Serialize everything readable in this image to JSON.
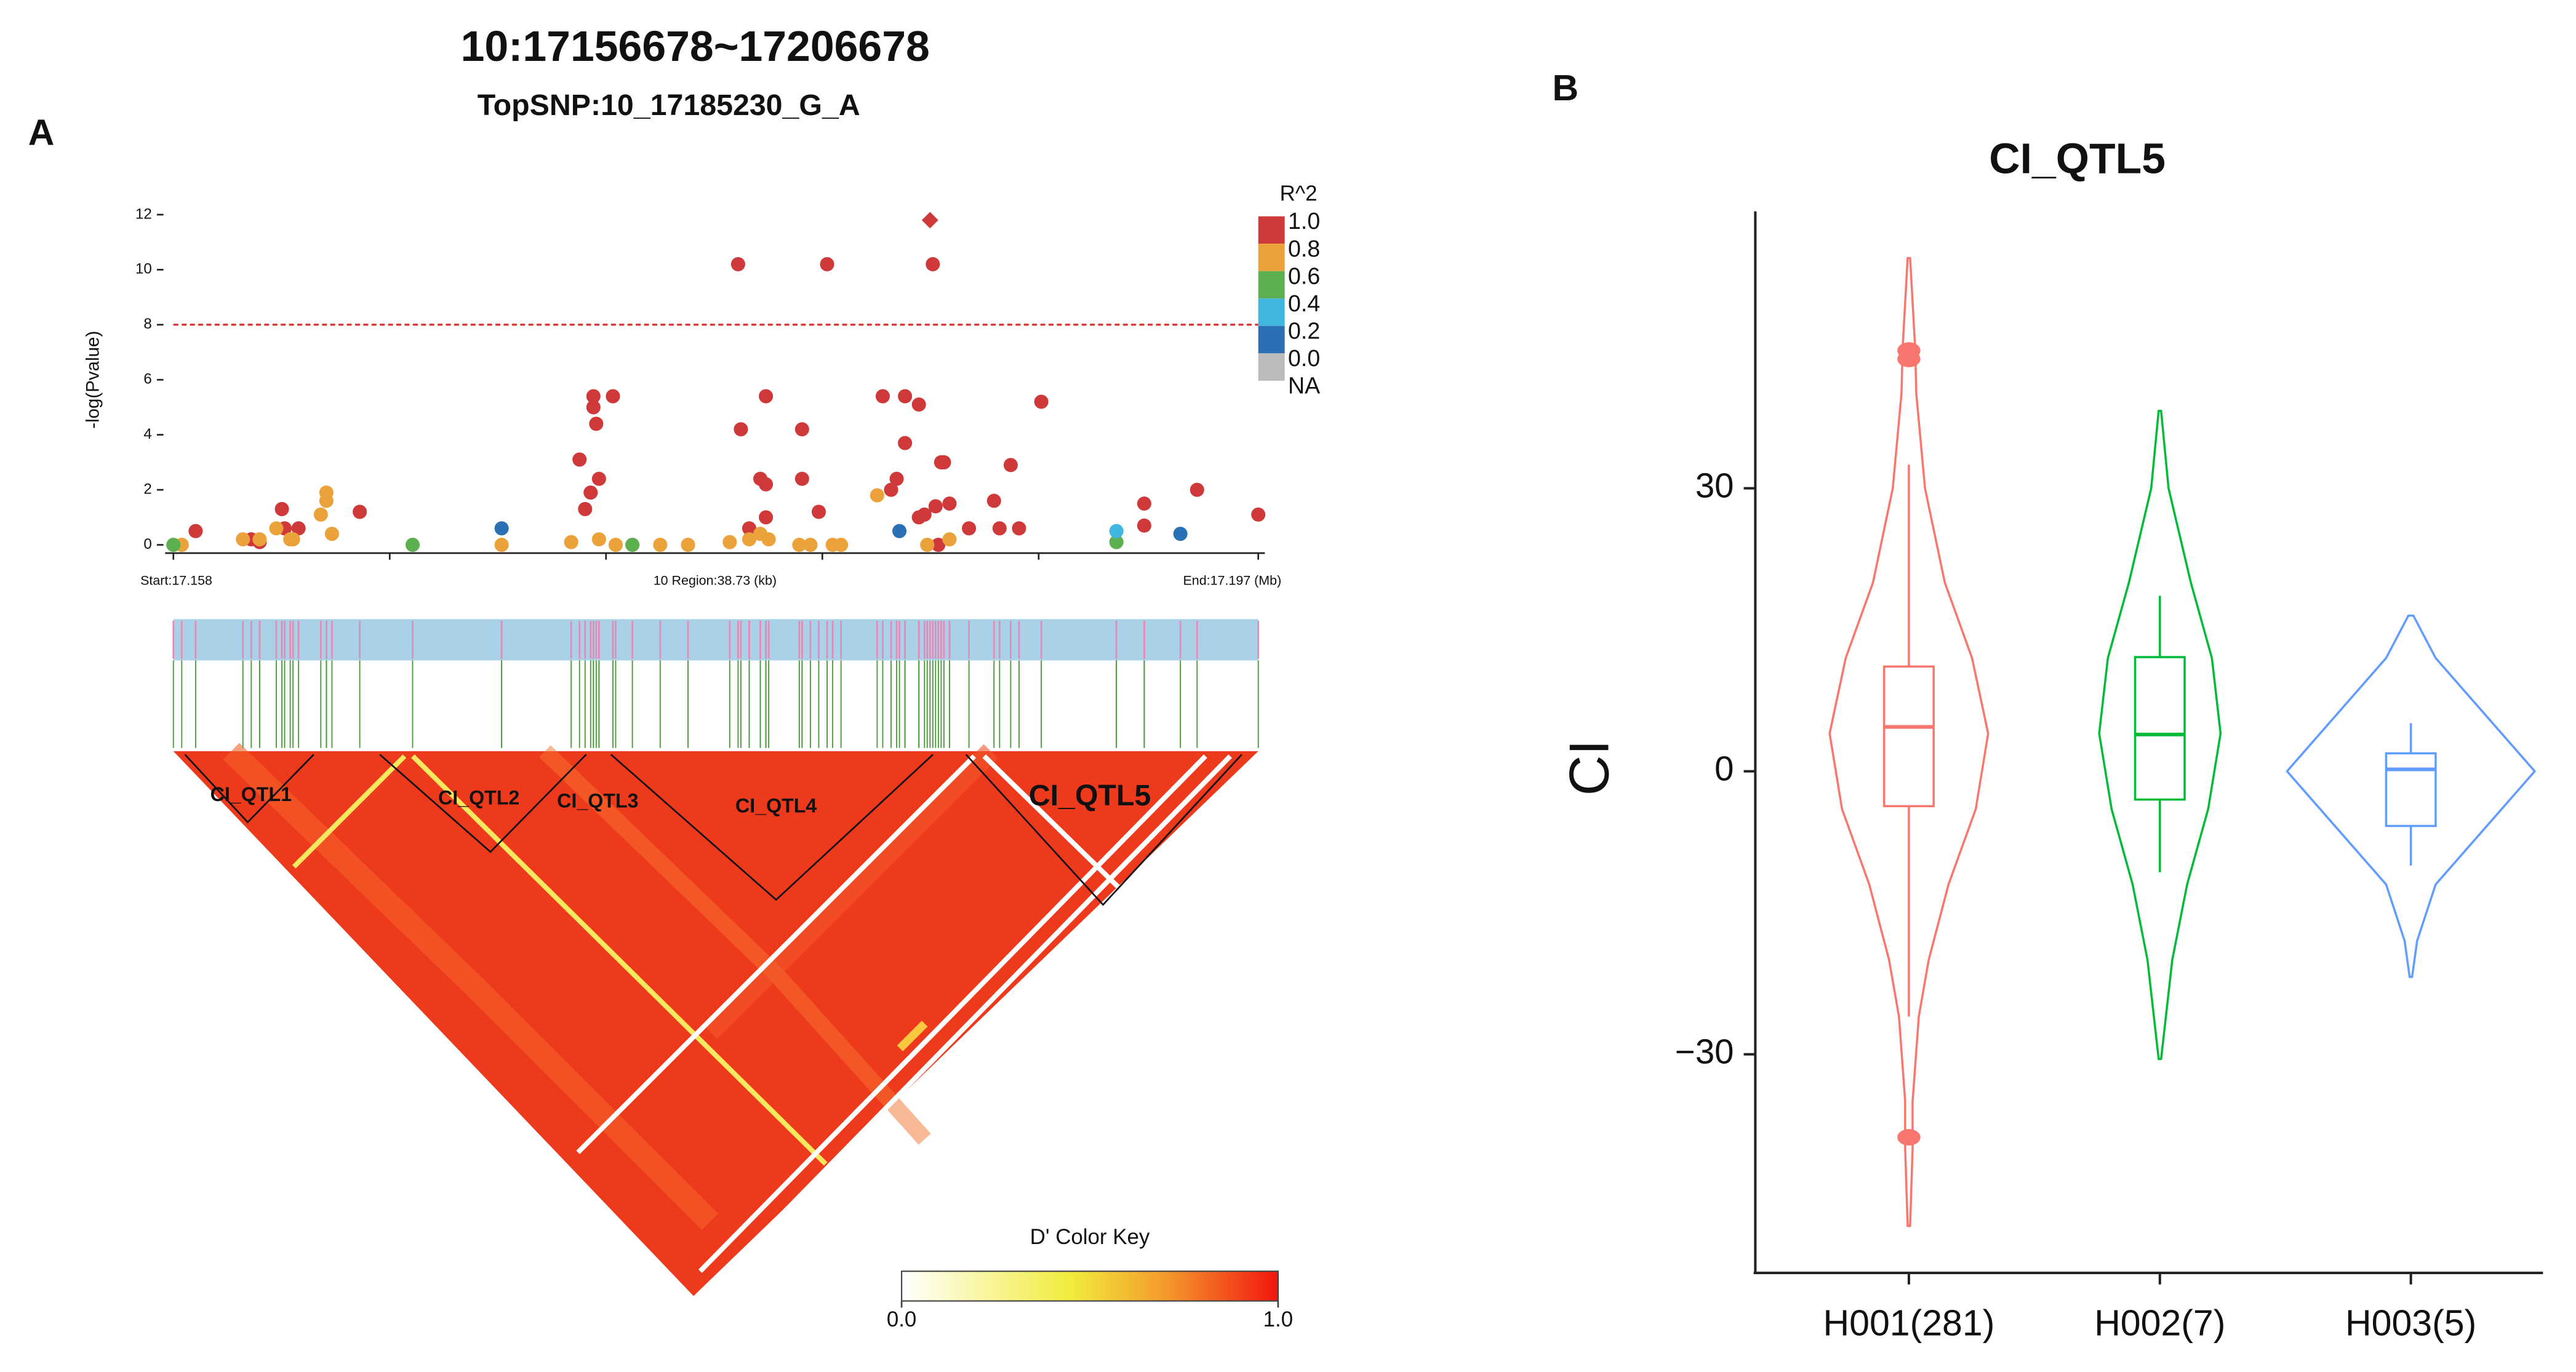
{
  "chart_data": [
    {
      "type": "scatter",
      "panel": "A",
      "title": "10:17156678~17206678",
      "subtitle": "TopSNP:10_17185230_G_A",
      "y_label": "-log(Pvalue)",
      "x_labels": [
        "Start:17.158",
        "10 Region:38.73 (kb)",
        "End:17.197 (Mb)"
      ],
      "xlim": [
        17.158,
        17.197
      ],
      "ylim": [
        0,
        12
      ],
      "yticks": [
        0,
        2,
        4,
        6,
        8,
        10,
        12
      ],
      "threshold": 8,
      "threshold_color": "#e0312f",
      "legend": {
        "title": "R^2",
        "labels": [
          "1.0",
          "0.8",
          "0.6",
          "0.4",
          "0.2",
          "0.0",
          "NA"
        ],
        "colors": [
          "#d0393a",
          "#eca23a",
          "#5cb04f",
          "#41b6e0",
          "#2b70b5",
          "#bbbbbb"
        ]
      },
      "series": [
        {
          "color": "#d0393a",
          "marker": "circle",
          "x": [
            17.1588,
            17.1608,
            17.1611,
            17.1619,
            17.162,
            17.1625,
            17.1647,
            17.1726,
            17.1728,
            17.173,
            17.1731,
            17.1731,
            17.1732,
            17.1733,
            17.1738,
            17.1783,
            17.1815,
            17.1853,
            17.1784,
            17.1793,
            17.1791,
            17.1793,
            17.1806,
            17.1806,
            17.1812,
            17.1787,
            17.1793,
            17.1835,
            17.1843,
            17.1843,
            17.1848,
            17.184,
            17.1838,
            17.1856,
            17.1857,
            17.1848,
            17.185,
            17.1854,
            17.1855,
            17.1859,
            17.1866,
            17.1875,
            17.1877,
            17.1881,
            17.1884,
            17.1892,
            17.1929,
            17.1929,
            17.1948,
            17.197
          ],
          "values": [
            0.5,
            0.2,
            0.1,
            1.3,
            0.6,
            0.6,
            1.2,
            3.1,
            1.3,
            1.9,
            5.4,
            5.0,
            4.4,
            2.4,
            5.4,
            10.2,
            10.2,
            10.2,
            4.2,
            5.4,
            2.4,
            2.2,
            4.2,
            2.4,
            1.2,
            0.6,
            1.0,
            5.4,
            5.4,
            3.7,
            5.1,
            2.4,
            2.0,
            3.0,
            3.0,
            1.0,
            1.1,
            1.4,
            0.0,
            1.5,
            0.6,
            1.6,
            0.6,
            2.9,
            0.6,
            5.2,
            1.5,
            0.7,
            2.0,
            1.1
          ]
        },
        {
          "color": "#d0393a",
          "marker": "diamond",
          "x": [
            17.1852
          ],
          "values": [
            11.8
          ]
        },
        {
          "color": "#eca23a",
          "marker": "circle",
          "x": [
            17.1583,
            17.1605,
            17.1611,
            17.1617,
            17.1622,
            17.1623,
            17.1633,
            17.1635,
            17.1635,
            17.1637,
            17.1698,
            17.1723,
            17.1733,
            17.1739,
            17.1755,
            17.1765,
            17.178,
            17.1787,
            17.1791,
            17.1794,
            17.1805,
            17.1809,
            17.1817,
            17.182,
            17.1833,
            17.1851,
            17.1859
          ],
          "values": [
            0.0,
            0.2,
            0.2,
            0.6,
            0.2,
            0.2,
            1.1,
            1.6,
            1.9,
            0.4,
            0.0,
            0.1,
            0.2,
            0.0,
            0.0,
            0.0,
            0.1,
            0.2,
            0.4,
            0.2,
            0.0,
            0.0,
            0.0,
            0.0,
            1.8,
            0.0,
            0.2
          ]
        },
        {
          "color": "#5cb04f",
          "marker": "circle",
          "x": [
            17.158,
            17.1666,
            17.1745,
            17.1919
          ],
          "values": [
            0.0,
            0.0,
            0.0,
            0.1
          ]
        },
        {
          "color": "#41b6e0",
          "marker": "circle",
          "x": [
            17.1919
          ],
          "values": [
            0.5
          ]
        },
        {
          "color": "#2b70b5",
          "marker": "circle",
          "x": [
            17.1698,
            17.1841,
            17.1942
          ],
          "values": [
            0.6,
            0.5,
            0.4
          ]
        }
      ],
      "ld_blocks": [
        "CI_QTL1",
        "CI_QTL2",
        "CI_QTL3",
        "CI_QTL4",
        "CI_QTL5"
      ],
      "color_key": {
        "title": "D' Color Key",
        "ticks": [
          {
            "value": 0,
            "label": "0.0"
          },
          {
            "value": 1,
            "label": "1.0"
          }
        ]
      }
    },
    {
      "type": "violin",
      "panel": "B",
      "title": "CI_QTL5",
      "y_label": "CI",
      "categories": [
        "H001(281)",
        "H002(7)",
        "H003(5)"
      ],
      "ylim": [
        -53,
        59
      ],
      "yticks": [
        {
          "value": -30,
          "label": "−30"
        },
        0,
        30
      ],
      "series": [
        {
          "color": "#f8766d",
          "median": 4.7,
          "q1": -3.7,
          "q3": 11.1,
          "whisker_low": -26,
          "whisker_high": 32.5,
          "outliers": [
            44.6,
            43.7,
            -38.8
          ],
          "density_y": [
            54.4,
            45,
            40,
            30,
            20,
            12,
            4,
            -4,
            -12,
            -20,
            -26,
            -35,
            -40,
            -48.2
          ],
          "density": [
            0.01,
            0.05,
            0.06,
            0.13,
            0.29,
            0.51,
            0.64,
            0.54,
            0.32,
            0.16,
            0.08,
            0.03,
            0.03,
            0.01
          ]
        },
        {
          "color": "#00ba38",
          "median": 3.9,
          "q1": -3.0,
          "q3": 12.1,
          "whisker_low": -10.7,
          "whisker_high": 18.6,
          "outliers": [],
          "density_y": [
            38.2,
            30,
            20,
            12,
            4,
            -4,
            -12,
            -20,
            -30.5
          ],
          "density": [
            0.01,
            0.07,
            0.25,
            0.42,
            0.49,
            0.39,
            0.22,
            0.1,
            0.01
          ]
        },
        {
          "color": "#619cff",
          "median": 0.2,
          "q1": -5.8,
          "q3": 1.9,
          "whisker_low": -10,
          "whisker_high": 5.1,
          "outliers": [],
          "density_y": [
            16.5,
            12,
            6,
            0,
            -6,
            -12,
            -18,
            -21.8
          ],
          "density": [
            0.02,
            0.2,
            0.6,
            1.0,
            0.6,
            0.2,
            0.05,
            0.01
          ]
        }
      ]
    }
  ]
}
